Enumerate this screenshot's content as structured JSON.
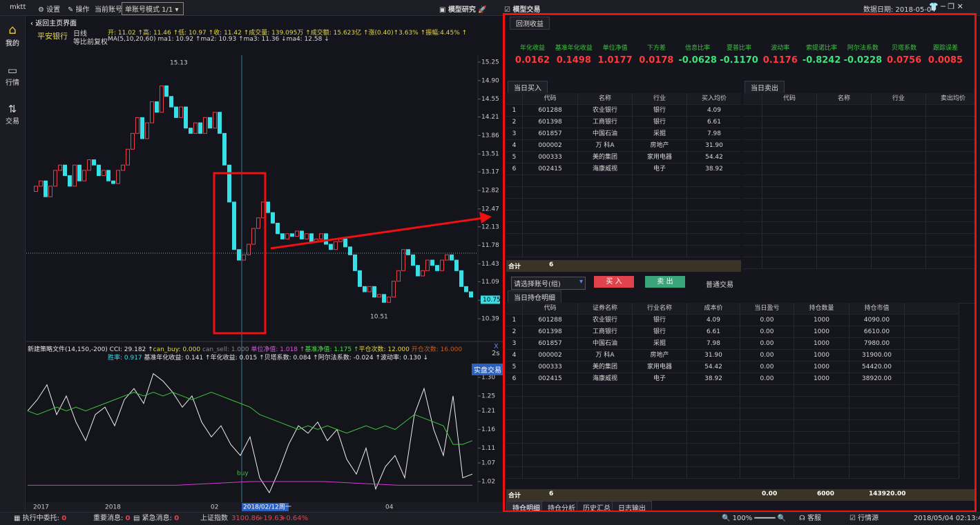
{
  "topbar": {
    "app": "mktt",
    "menu": [
      "设置",
      "操作",
      "当前账号"
    ],
    "mode": "单账号模式 1/1",
    "research": "模型研究",
    "trading": "模型交易",
    "date": "数据日期: 2018-05-04"
  },
  "sidebar": [
    "我的",
    "行情",
    "交易"
  ],
  "chart_header": {
    "back": "返回主页界面",
    "stock": "平安银行",
    "period": "日线",
    "adjust": "等比前复权",
    "ohlc": "开: 11.02 ↑高: 11.46 ↑低: 10.97 ↑收: 11.42 ↑成交量: 139.095万 ↑成交额: 15.623亿 ↑涨(0.40)↑3.63% ↑振幅:4.45% ↑",
    "ma": "MA(5,10,20,60) ma1: 10.92 ↑ma2: 10.93 ↑ma3: 11.36 ↓ma4: 12.58 ↓"
  },
  "price_chart": {
    "ylim": [
      10.39,
      15.25
    ],
    "yticks": [
      15.25,
      {
        "value": 14.9,
        "label": "14.90"
      },
      14.55,
      14.21,
      13.86,
      13.51,
      13.17,
      12.82,
      12.47,
      12.13,
      11.78,
      11.43,
      11.09,
      10.74,
      10.39
    ],
    "up_color": "#e8414b",
    "down_color": "#35e0e6",
    "closes": [
      12.8,
      12.9,
      13.0,
      12.7,
      12.9,
      13.2,
      13.3,
      13.1,
      12.9,
      13.3,
      13.0,
      13.2,
      13.4,
      13.3,
      13.1,
      13.2,
      13.0,
      12.95,
      13.2,
      13.3,
      13.6,
      13.9,
      14.2,
      13.8,
      14.1,
      14.5,
      14.3,
      14.8,
      14.6,
      14.4,
      14.2,
      14.4,
      14.0,
      13.9,
      14.1,
      13.9,
      14.2,
      14.0,
      14.3,
      13.9,
      13.3,
      12.6,
      11.7,
      11.5,
      11.6,
      11.8,
      12.1,
      12.3,
      12.6,
      12.4,
      12.2,
      12.0,
      11.9,
      12.0,
      11.95,
      12.05,
      11.9,
      12.0,
      11.85,
      11.9,
      12.0,
      11.8,
      11.7,
      11.85,
      11.9,
      11.75,
      11.6,
      11.3,
      11.0,
      10.9,
      11.0,
      10.8,
      10.85,
      10.7,
      10.8,
      11.1,
      11.3,
      11.7,
      11.6,
      11.4,
      11.2,
      11.3,
      11.5,
      11.4,
      11.3,
      11.5,
      11.6,
      11.5,
      11.3,
      11.0,
      10.9,
      10.8
    ],
    "high": {
      "value": 15.13,
      "label": "15.13"
    },
    "low": {
      "value": 10.51,
      "label": "10.51"
    },
    "last": {
      "value": 10.75,
      "label": "10.75"
    }
  },
  "indicator": {
    "line1": [
      {
        "text": "新建策略文件(14,150,-200) CCI: 29.182 ↑",
        "color": "#e6e6e6"
      },
      {
        "text": "can_buy: 0.000 ",
        "color": "#e8d84a"
      },
      {
        "text": "can_sell: 1.000 ",
        "color": "#888888"
      },
      {
        "text": "单位净值: 1.018 ↑",
        "color": "#d25cd9"
      },
      {
        "text": "基准净值: 1.175 ↑",
        "color": "#4ee04e"
      },
      {
        "text": "平仓次数: 12.000 ",
        "color": "#e8d84a"
      },
      {
        "text": "开仓次数: 16.000",
        "color": "#c06020"
      }
    ],
    "line2": [
      {
        "text": "胜率: 0.917 ",
        "color": "#35e0e6"
      },
      {
        "text": "基准年化收益: 0.141 ↑年化收益: 0.015 ↑贝塔系数: 0.084 ↑阿尔法系数: -0.024 ↑波动率: 0.130 ↓",
        "color": "#e6e6e6"
      }
    ],
    "button": "实盘交易",
    "close": "X",
    "refresh": "2s",
    "signal": "buy",
    "ylim": [
      1.02,
      1.3
    ],
    "yticks": [
      {
        "value": 1.3,
        "label": "1.30"
      },
      1.25,
      1.21,
      1.16,
      1.11,
      1.07,
      1.02
    ],
    "series": [
      {
        "name": "单位净值",
        "color": "#f0f0f0",
        "values": [
          1.21,
          1.24,
          1.28,
          1.2,
          1.25,
          1.18,
          1.13,
          1.2,
          1.22,
          1.17,
          1.24,
          1.27,
          1.23,
          1.31,
          1.29,
          1.26,
          1.22,
          1.25,
          1.18,
          1.14,
          1.17,
          1.12,
          1.09,
          1.14,
          1.03,
          0.99,
          1.05,
          1.12,
          1.17,
          1.15,
          1.18,
          1.13,
          1.16,
          1.08,
          1.04,
          1.11,
          1.0,
          1.06,
          1.09,
          1.03,
          1.2,
          1.27,
          1.16,
          1.09,
          1.25,
          1.03,
          1.04
        ]
      },
      {
        "name": "基准净值",
        "color": "#3ec43e",
        "values": [
          1.21,
          1.2,
          1.21,
          1.22,
          1.21,
          1.22,
          1.21,
          1.22,
          1.23,
          1.24,
          1.25,
          1.26,
          1.25,
          1.26,
          1.25,
          1.26,
          1.25,
          1.24,
          1.25,
          1.26,
          1.25,
          1.24,
          1.23,
          1.22,
          1.2,
          1.19,
          1.18,
          1.17,
          1.16,
          1.17,
          1.16,
          1.17,
          1.16,
          1.15,
          1.16,
          1.17,
          1.16,
          1.17,
          1.16,
          1.18,
          1.2,
          1.19,
          1.18,
          1.17,
          1.12,
          1.12,
          1.13
        ]
      },
      {
        "name": "基准",
        "color": "#d23cd2",
        "values": [
          1.01,
          1.01,
          1.01,
          1.02,
          1.02,
          1.01,
          1.01
        ]
      }
    ]
  },
  "xaxis": [
    "2017",
    "2018",
    "02",
    "04"
  ],
  "cursor_date": "2018/02/12周一",
  "metrics": {
    "tab": "回测收益",
    "labels": [
      "年化收益",
      "基准年化收益",
      "单位净值",
      "下方差",
      "信息比率",
      "夏普比率",
      "波动率",
      "索提诺比率",
      "阿尔法系数",
      "贝塔系数",
      "跟踪误差"
    ],
    "values": [
      "0.0162",
      "0.1498",
      "1.0177",
      "0.0178",
      "-0.0628",
      "-0.1170",
      "0.1176",
      "-0.8242",
      "-0.0228",
      "0.0756",
      "0.0085"
    ]
  },
  "buy": {
    "title": "当日买入",
    "headers": [
      "代码",
      "名称",
      "行业",
      "买入均价"
    ],
    "rows": [
      [
        "1",
        "601288",
        "农业银行",
        "银行",
        "4.09"
      ],
      [
        "2",
        "601398",
        "工商银行",
        "银行",
        "6.61"
      ],
      [
        "3",
        "601857",
        "中国石油",
        "采掘",
        "7.98"
      ],
      [
        "4",
        "000002",
        "万 科A",
        "房地产",
        "31.90"
      ],
      [
        "5",
        "000333",
        "美的集团",
        "家用电器",
        "54.42"
      ],
      [
        "6",
        "002415",
        "海康威视",
        "电子",
        "38.92"
      ]
    ],
    "total": [
      "合计",
      "6"
    ]
  },
  "sell": {
    "title": "当日卖出",
    "headers": [
      "代码",
      "名称",
      "行业",
      "卖出均价"
    ]
  },
  "controls": {
    "account": "请选择账号(组)",
    "buy": "买 入",
    "sell": "卖 出",
    "mode": "普通交易"
  },
  "holdings": {
    "title": "当日持仓明细",
    "headers": [
      "代码",
      "证券名称",
      "行业名称",
      "成本价",
      "当日盈亏",
      "持仓数量",
      "持仓市值"
    ],
    "rows": [
      [
        "1",
        "601288",
        "农业银行",
        "银行",
        "4.09",
        "0.00",
        "1000",
        "4090.00"
      ],
      [
        "2",
        "601398",
        "工商银行",
        "银行",
        "6.61",
        "0.00",
        "1000",
        "6610.00"
      ],
      [
        "3",
        "601857",
        "中国石油",
        "采掘",
        "7.98",
        "0.00",
        "1000",
        "7980.00"
      ],
      [
        "4",
        "000002",
        "万 科A",
        "房地产",
        "31.90",
        "0.00",
        "1000",
        "31900.00"
      ],
      [
        "5",
        "000333",
        "美的集团",
        "家用电器",
        "54.42",
        "0.00",
        "1000",
        "54420.00"
      ],
      [
        "6",
        "002415",
        "海康威视",
        "电子",
        "38.92",
        "0.00",
        "1000",
        "38920.00"
      ]
    ],
    "total": [
      "合计",
      "6",
      "0.00",
      "6000",
      "143920.00"
    ]
  },
  "bottom_tabs": [
    "持仓明细",
    "持仓分析",
    "历史汇总",
    "日志输出"
  ],
  "status": {
    "orders": "执行中委托:",
    "orders_n": "0",
    "important": "重要消息:",
    "important_n": "0",
    "urgent": "紧急消息:",
    "urgent_n": "0",
    "index": "上证指数",
    "index_val": "3100.86",
    "change": "+19.63",
    "pct": "+0.64%",
    "zoom": "100%",
    "service": "客服",
    "source": "行情源",
    "time": "2018/05/04 02:13:43"
  }
}
